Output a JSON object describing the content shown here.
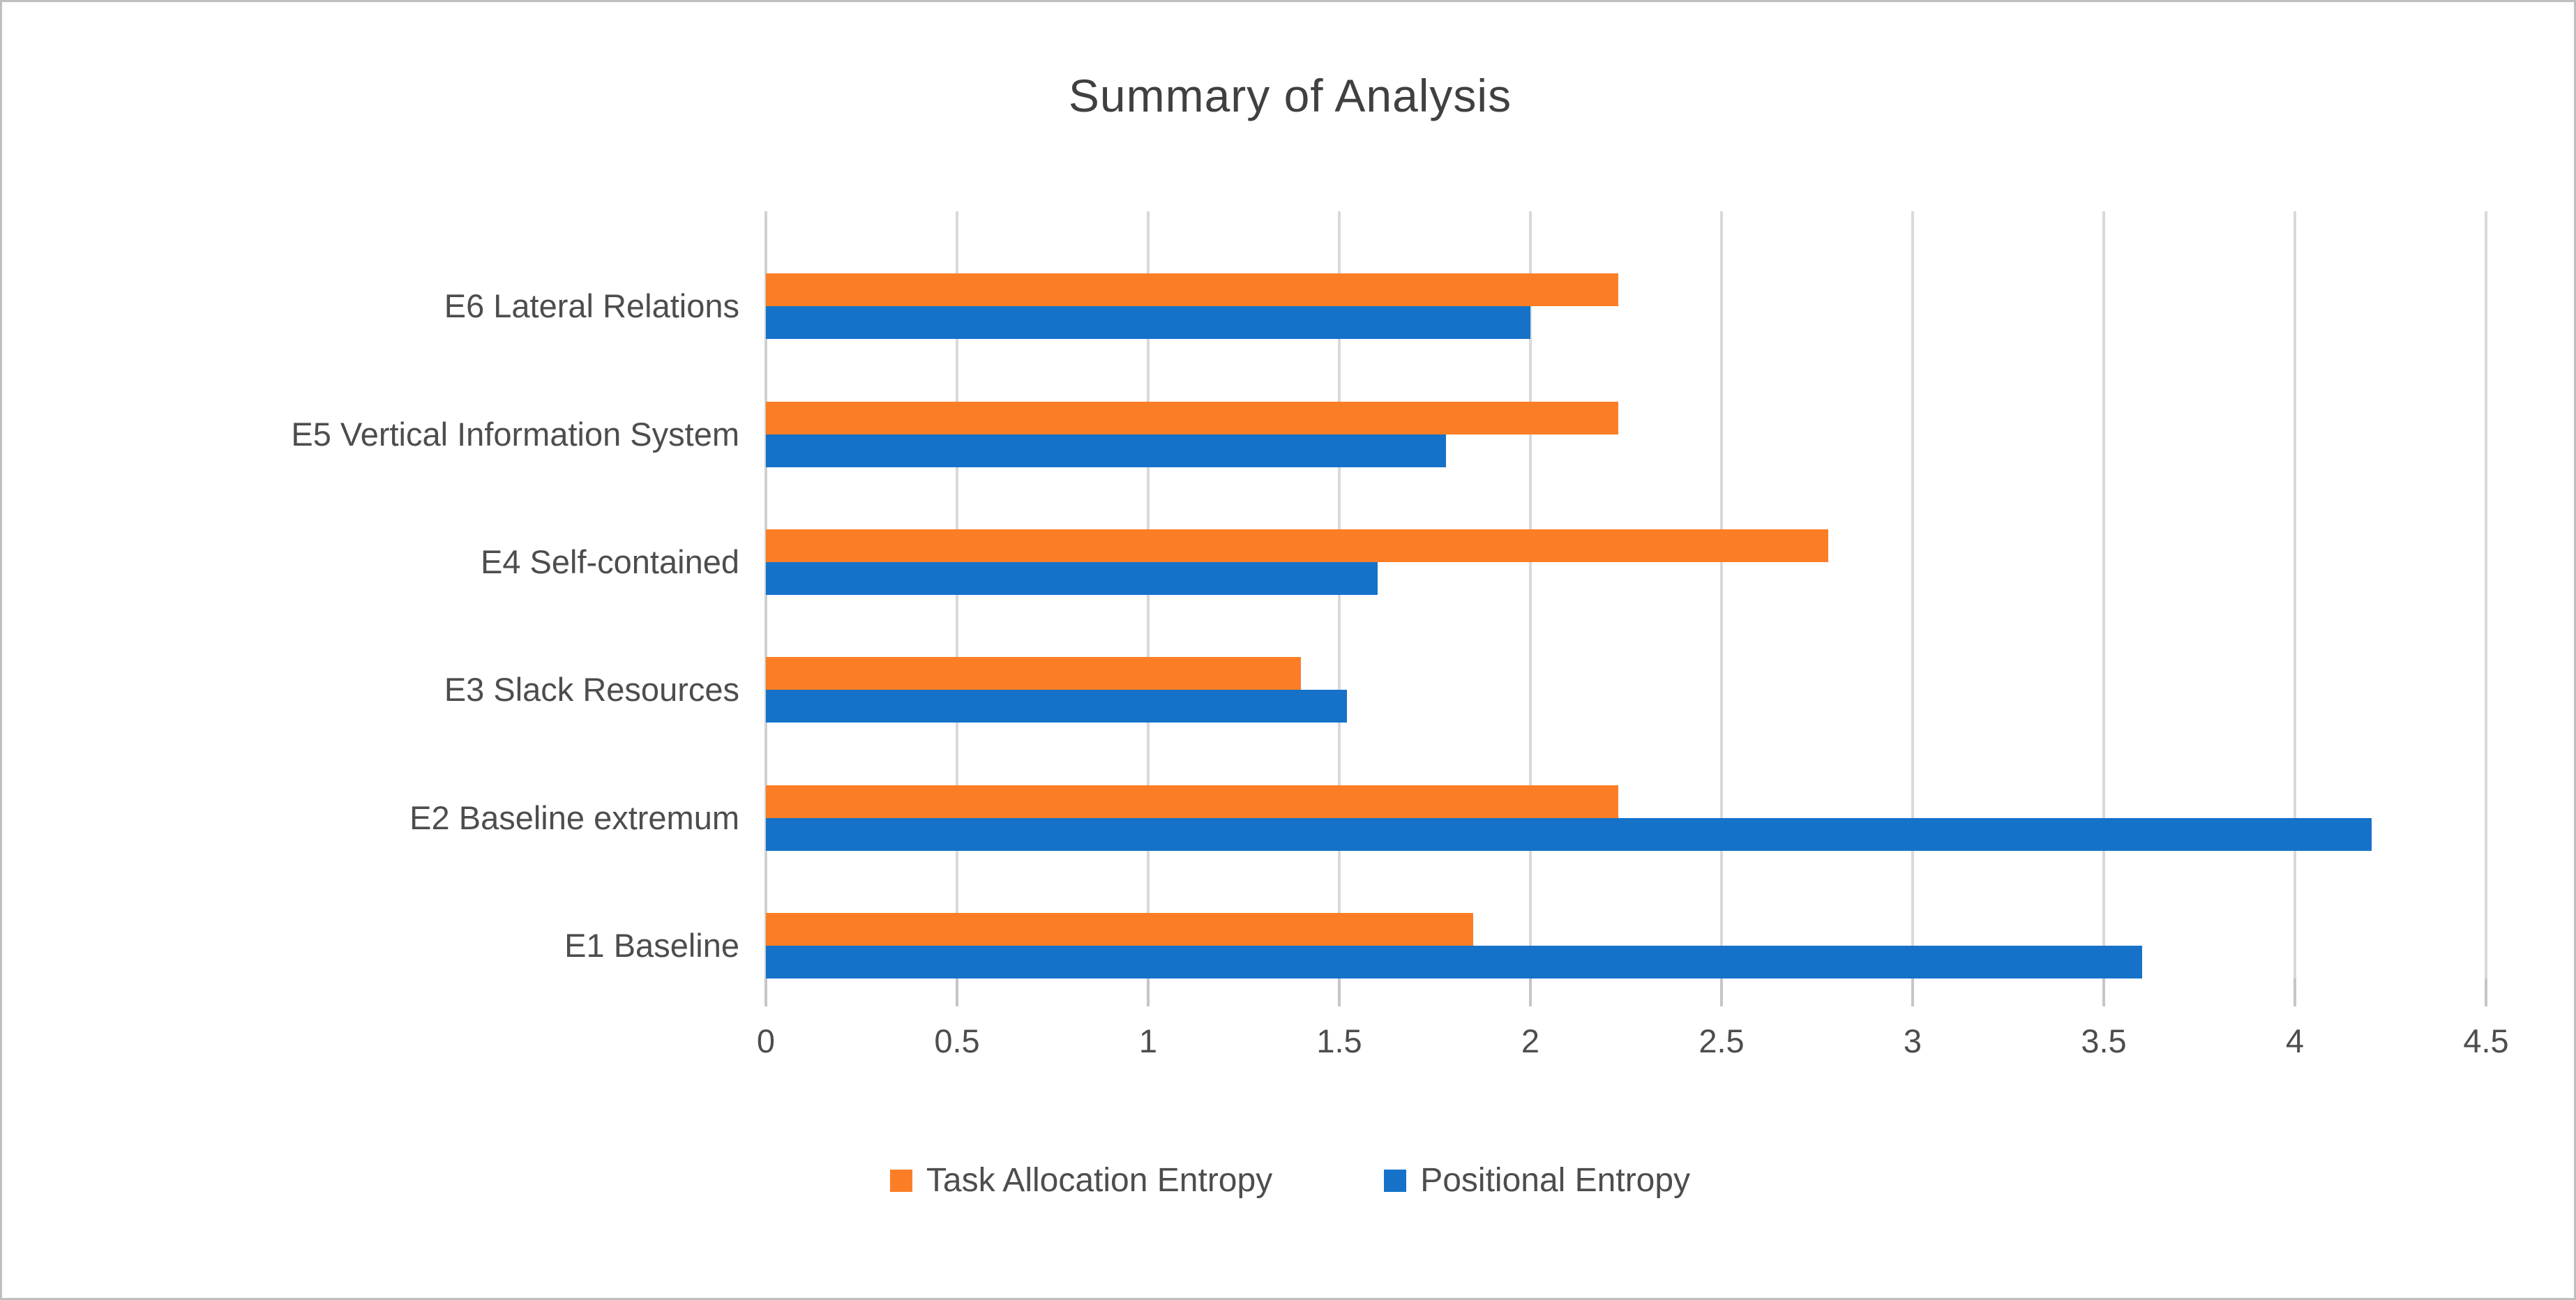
{
  "page": {
    "background": "#ffffff",
    "border_color": "#bfbfbf"
  },
  "chart_data": {
    "type": "bar",
    "orientation": "horizontal",
    "title": "Summary of Analysis",
    "categories": [
      "E6 Lateral Relations",
      "E5 Vertical Information System",
      "E4 Self-contained",
      "E3 Slack Resources",
      "E2 Baseline extremum",
      "E1 Baseline"
    ],
    "series": [
      {
        "name": "Task Allocation Entropy",
        "color": "#FB7E26",
        "values": [
          2.23,
          2.23,
          2.78,
          1.4,
          2.23,
          1.85
        ]
      },
      {
        "name": "Positional Entropy",
        "color": "#1572C8",
        "values": [
          2.0,
          1.78,
          1.6,
          1.52,
          4.2,
          3.6
        ]
      }
    ],
    "x_axis": {
      "min": 0,
      "max": 4.5,
      "tick_step": 0.5,
      "tick_labels": [
        "0",
        "0.5",
        "1",
        "1.5",
        "2",
        "2.5",
        "3",
        "3.5",
        "4",
        "4.5"
      ]
    },
    "grid": true,
    "legend_position": "bottom",
    "colors": {
      "grid": "#d9d9d9",
      "tick": "#c6c6c6",
      "text": "#4d4d4d",
      "title": "#404040"
    }
  }
}
